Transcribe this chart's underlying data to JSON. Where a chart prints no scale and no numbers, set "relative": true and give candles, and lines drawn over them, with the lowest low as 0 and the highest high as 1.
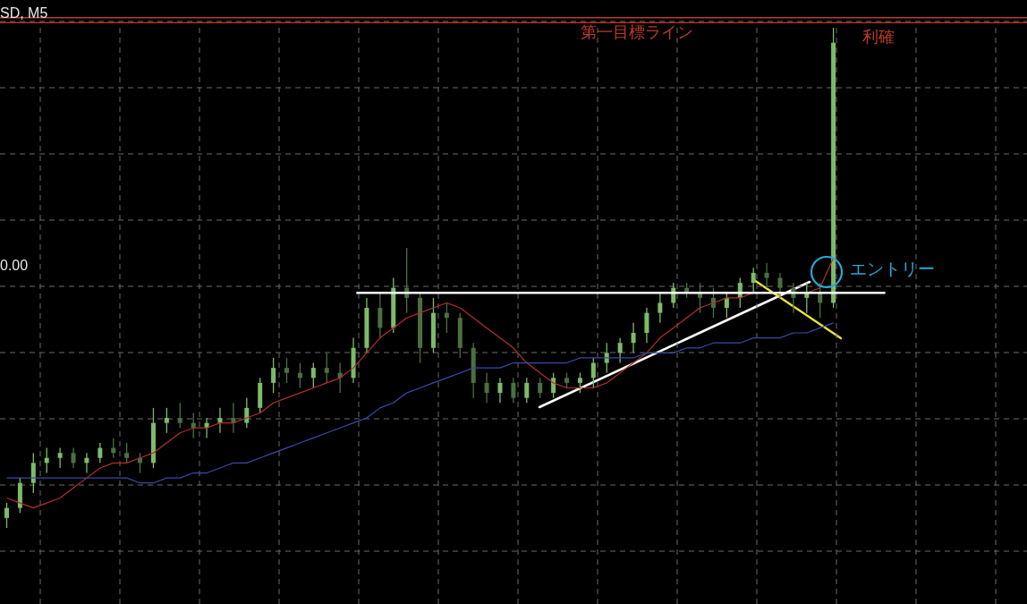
{
  "chart_data": {
    "type": "candlestick",
    "title": "SD, M5",
    "relative": true,
    "grid": true,
    "colors": [
      "#7dbb6a",
      "#7dbb6a",
      "#7dbb6a",
      "#7dbb6a",
      "#7dbb6a",
      "#4b7040",
      "#7dbb6a",
      "#7dbb6a",
      "#4b7040",
      "#4b7040",
      "#4b7040",
      "#7dbb6a",
      "#7dbb6a",
      "#4b7040",
      "#4b7040",
      "#7dbb6a",
      "#7dbb6a",
      "#4b7040",
      "#7dbb6a",
      "#7dbb6a",
      "#7dbb6a",
      "#4b7040",
      "#4b7040",
      "#7dbb6a",
      "#4b7040",
      "#4b7040",
      "#7dbb6a",
      "#7dbb6a",
      "#4b7040",
      "#7dbb6a",
      "#4b7040",
      "#4b7040",
      "#7dbb6a",
      "#4b7040",
      "#4b7040",
      "#4b7040",
      "#4b7040",
      "#7dbb6a",
      "#4b7040",
      "#7dbb6a",
      "#4b7040",
      "#7dbb6a",
      "#4b7040",
      "#7dbb6a",
      "#7dbb6a",
      "#7dbb6a",
      "#7dbb6a",
      "#7dbb6a",
      "#7dbb6a",
      "#7dbb6a",
      "#7dbb6a",
      "#4b7040",
      "#4b7040",
      "#4b7040",
      "#7dbb6a",
      "#7dbb6a",
      "#7dbb6a",
      "#4b7040",
      "#4b7040",
      "#4b7040",
      "#7dbb6a",
      "#4b7040",
      "#7dbb6a"
    ],
    "marker": "none",
    "categories": [
      null,
      null,
      null,
      null,
      null,
      null,
      null,
      null,
      null,
      null,
      null,
      null,
      null,
      null,
      null,
      null,
      null,
      null,
      null,
      null,
      null,
      null,
      null,
      null,
      null,
      null,
      null,
      null,
      null,
      null,
      null,
      null,
      null,
      null,
      null,
      null,
      null,
      null,
      null,
      null,
      null,
      null,
      null,
      null,
      null,
      null,
      null,
      null,
      null,
      null,
      null,
      null,
      null,
      null,
      null,
      null,
      null,
      null,
      null,
      null,
      null,
      null,
      null
    ],
    "ohlc": [
      [
        0.02,
        0.05,
        0,
        0.04
      ],
      [
        0.04,
        0.1,
        0.03,
        0.09
      ],
      [
        0.09,
        0.15,
        0.07,
        0.13
      ],
      [
        0.13,
        0.16,
        0.11,
        0.14
      ],
      [
        0.14,
        0.16,
        0.12,
        0.15
      ],
      [
        0.15,
        0.16,
        0.12,
        0.13
      ],
      [
        0.13,
        0.15,
        0.11,
        0.14
      ],
      [
        0.14,
        0.17,
        0.13,
        0.16
      ],
      [
        0.16,
        0.18,
        0.14,
        0.15
      ],
      [
        0.15,
        0.17,
        0.13,
        0.14
      ],
      [
        0.14,
        0.15,
        0.11,
        0.13
      ],
      [
        0.13,
        0.24,
        0.12,
        0.21
      ],
      [
        0.21,
        0.24,
        0.19,
        0.22
      ],
      [
        0.22,
        0.25,
        0.2,
        0.21
      ],
      [
        0.21,
        0.23,
        0.18,
        0.2
      ],
      [
        0.2,
        0.22,
        0.18,
        0.21
      ],
      [
        0.21,
        0.24,
        0.19,
        0.22
      ],
      [
        0.22,
        0.25,
        0.19,
        0.21
      ],
      [
        0.21,
        0.26,
        0.2,
        0.24
      ],
      [
        0.24,
        0.3,
        0.23,
        0.29
      ],
      [
        0.29,
        0.34,
        0.27,
        0.32
      ],
      [
        0.32,
        0.34,
        0.29,
        0.31
      ],
      [
        0.31,
        0.33,
        0.28,
        0.3
      ],
      [
        0.3,
        0.33,
        0.28,
        0.32
      ],
      [
        0.32,
        0.35,
        0.29,
        0.31
      ],
      [
        0.31,
        0.33,
        0.27,
        0.3
      ],
      [
        0.3,
        0.38,
        0.29,
        0.36
      ],
      [
        0.36,
        0.46,
        0.35,
        0.44
      ],
      [
        0.44,
        0.47,
        0.38,
        0.4
      ],
      [
        0.4,
        0.5,
        0.39,
        0.48
      ],
      [
        0.48,
        0.56,
        0.43,
        0.46
      ],
      [
        0.46,
        0.47,
        0.33,
        0.36
      ],
      [
        0.36,
        0.46,
        0.35,
        0.43
      ],
      [
        0.43,
        0.45,
        0.39,
        0.42
      ],
      [
        0.42,
        0.43,
        0.34,
        0.36
      ],
      [
        0.36,
        0.37,
        0.26,
        0.29
      ],
      [
        0.29,
        0.31,
        0.25,
        0.27
      ],
      [
        0.27,
        0.3,
        0.25,
        0.29
      ],
      [
        0.29,
        0.3,
        0.25,
        0.26
      ],
      [
        0.26,
        0.3,
        0.25,
        0.29
      ],
      [
        0.29,
        0.3,
        0.26,
        0.27
      ],
      [
        0.27,
        0.31,
        0.26,
        0.3
      ],
      [
        0.3,
        0.31,
        0.28,
        0.29
      ],
      [
        0.29,
        0.31,
        0.27,
        0.3
      ],
      [
        0.3,
        0.34,
        0.28,
        0.33
      ],
      [
        0.33,
        0.37,
        0.31,
        0.35
      ],
      [
        0.35,
        0.38,
        0.33,
        0.37
      ],
      [
        0.37,
        0.41,
        0.35,
        0.39
      ],
      [
        0.39,
        0.44,
        0.37,
        0.43
      ],
      [
        0.43,
        0.47,
        0.41,
        0.45
      ],
      [
        0.45,
        0.49,
        0.44,
        0.48
      ],
      [
        0.48,
        0.49,
        0.46,
        0.47
      ],
      [
        0.47,
        0.49,
        0.43,
        0.46
      ],
      [
        0.46,
        0.48,
        0.42,
        0.44
      ],
      [
        0.44,
        0.47,
        0.42,
        0.46
      ],
      [
        0.46,
        0.5,
        0.44,
        0.49
      ],
      [
        0.49,
        0.52,
        0.47,
        0.51
      ],
      [
        0.51,
        0.53,
        0.48,
        0.5
      ],
      [
        0.5,
        0.51,
        0.46,
        0.48
      ],
      [
        0.48,
        0.49,
        0.43,
        0.46
      ],
      [
        0.46,
        0.49,
        0.43,
        0.47
      ],
      [
        0.47,
        0.49,
        0.42,
        0.45
      ],
      [
        0.45,
        1,
        0.44,
        0.97
      ]
    ],
    "series": [
      {
        "type": "line",
        "color": "#b3302c",
        "values": [
          0.06,
          0.05,
          0.04,
          0.05,
          0.06,
          0.08,
          0.1,
          0.12,
          0.13,
          0.13,
          0.14,
          0.15,
          0.17,
          0.19,
          0.2,
          0.2,
          0.21,
          0.21,
          0.22,
          0.23,
          0.25,
          0.26,
          0.27,
          0.28,
          0.29,
          0.3,
          0.32,
          0.35,
          0.38,
          0.4,
          0.42,
          0.43,
          0.44,
          0.45,
          0.44,
          0.42,
          0.4,
          0.38,
          0.36,
          0.33,
          0.31,
          0.29,
          0.28,
          0.28,
          0.28,
          0.29,
          0.31,
          0.33,
          0.35,
          0.38,
          0.4,
          0.42,
          0.44,
          0.45,
          0.46,
          0.46,
          0.47,
          0.47,
          0.47,
          0.47,
          0.47,
          0.48,
          0.54
        ]
      },
      {
        "type": "line",
        "color": "#3b4aa8",
        "values": [
          0.1,
          0.1,
          0.1,
          0.1,
          0.1,
          0.1,
          0.1,
          0.1,
          0.1,
          0.1,
          0.09,
          0.09,
          0.1,
          0.1,
          0.11,
          0.11,
          0.12,
          0.13,
          0.13,
          0.14,
          0.15,
          0.16,
          0.17,
          0.18,
          0.19,
          0.2,
          0.21,
          0.22,
          0.24,
          0.25,
          0.27,
          0.28,
          0.29,
          0.3,
          0.31,
          0.32,
          0.32,
          0.32,
          0.33,
          0.33,
          0.33,
          0.33,
          0.33,
          0.34,
          0.34,
          0.34,
          0.34,
          0.34,
          0.35,
          0.35,
          0.35,
          0.36,
          0.36,
          0.37,
          0.37,
          0.37,
          0.38,
          0.38,
          0.38,
          0.39,
          0.39,
          0.4,
          0.41
        ]
      }
    ],
    "ref_lines": [
      {
        "axis": "y",
        "value": 1.02,
        "label": "第一目標ライン",
        "color": "#c0392b"
      },
      {
        "axis": "y",
        "value": 1.01,
        "label": "利確",
        "color": "#c0392b"
      },
      {
        "axis": "y",
        "value": 0.47,
        "label": null,
        "color": "#ffffff"
      }
    ],
    "annotations": [
      "0.00",
      "エントリー"
    ]
  }
}
